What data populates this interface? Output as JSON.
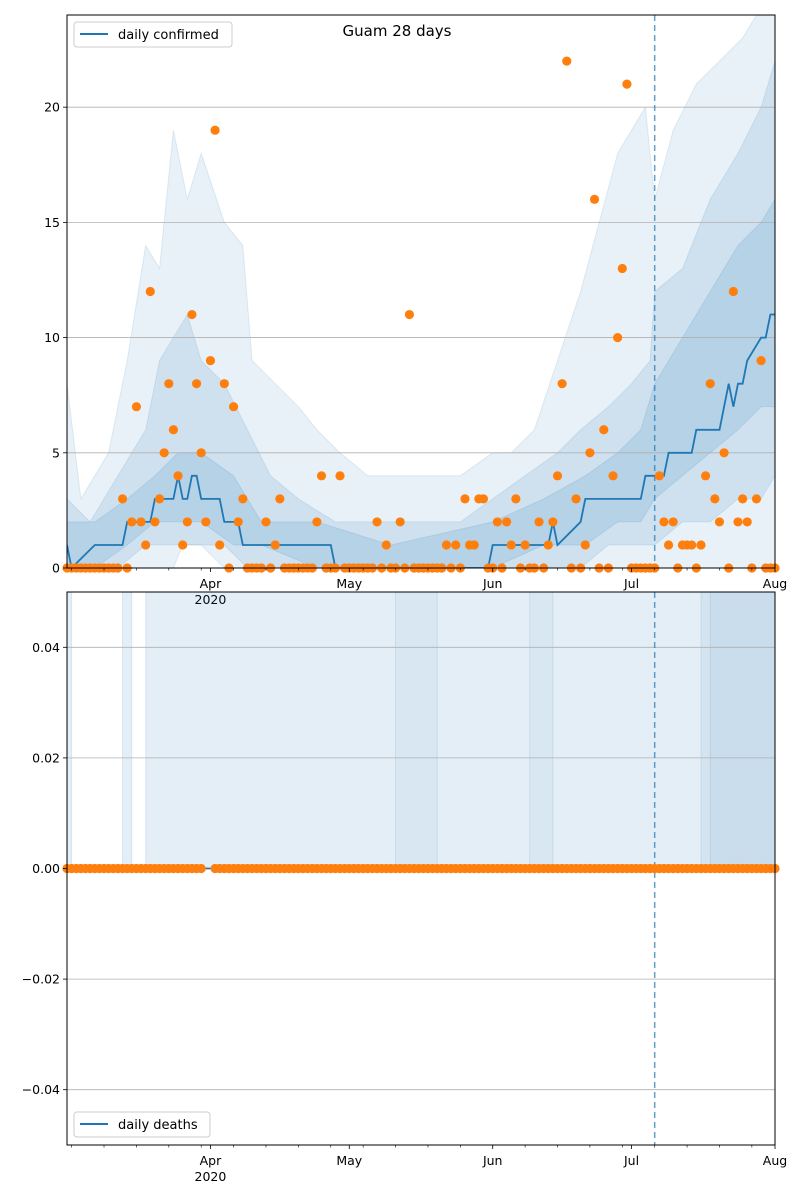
{
  "chart_data": [
    {
      "type": "line",
      "title": "Guam 28 days",
      "xlabel": "",
      "ylabel": "",
      "start_date": "2020-03-01",
      "xlim": [
        "2020-03-01",
        "2020-08-01"
      ],
      "ylim": [
        0,
        24
      ],
      "yticks": [
        0,
        5,
        10,
        15,
        20
      ],
      "xtick_labels": [
        {
          "date": "2020-04-01",
          "label": "Apr",
          "sublabel": "2020"
        },
        {
          "date": "2020-05-01",
          "label": "May",
          "sublabel": ""
        },
        {
          "date": "2020-06-01",
          "label": "Jun",
          "sublabel": ""
        },
        {
          "date": "2020-07-01",
          "label": "Jul",
          "sublabel": ""
        },
        {
          "date": "2020-08-01",
          "label": "Aug",
          "sublabel": ""
        }
      ],
      "grid": "y",
      "legend": {
        "position": "top-left",
        "entries": [
          "daily confirmed"
        ]
      },
      "forecast_date": "2020-07-06",
      "series": [
        {
          "name": "daily confirmed",
          "kind": "line",
          "color": "#1f77b4",
          "x": [
            "2020-03-01",
            "2020-03-02",
            "2020-03-07",
            "2020-03-13",
            "2020-03-14",
            "2020-03-19",
            "2020-03-20",
            "2020-03-24",
            "2020-03-25",
            "2020-03-26",
            "2020-03-27",
            "2020-03-28",
            "2020-03-29",
            "2020-03-30",
            "2020-04-03",
            "2020-04-04",
            "2020-04-07",
            "2020-04-08",
            "2020-04-09",
            "2020-04-10",
            "2020-04-11",
            "2020-04-12",
            "2020-04-13",
            "2020-04-27",
            "2020-04-28",
            "2020-05-31",
            "2020-06-01",
            "2020-06-13",
            "2020-06-14",
            "2020-06-15",
            "2020-06-20",
            "2020-06-21",
            "2020-07-03",
            "2020-07-04",
            "2020-07-08",
            "2020-07-09",
            "2020-07-14",
            "2020-07-15",
            "2020-07-20",
            "2020-07-21",
            "2020-07-22",
            "2020-07-23",
            "2020-07-24",
            "2020-07-25",
            "2020-07-26",
            "2020-07-29",
            "2020-07-30",
            "2020-07-31",
            "2020-08-01"
          ],
          "values": [
            1,
            0,
            1,
            1,
            2,
            2,
            3,
            3,
            4,
            3,
            3,
            4,
            4,
            3,
            3,
            2,
            2,
            1,
            1,
            1,
            1,
            1,
            1,
            1,
            0,
            0,
            1,
            1,
            2,
            1,
            2,
            3,
            3,
            4,
            4,
            5,
            5,
            6,
            6,
            7,
            8,
            7,
            8,
            8,
            9,
            10,
            10,
            11,
            11
          ]
        },
        {
          "name": "",
          "kind": "points",
          "color": "#ff7f0e",
          "x": [
            "2020-03-13",
            "2020-03-15",
            "2020-03-16",
            "2020-03-17",
            "2020-03-18",
            "2020-03-19",
            "2020-03-20",
            "2020-03-21",
            "2020-03-22",
            "2020-03-23",
            "2020-03-24",
            "2020-03-25",
            "2020-03-26",
            "2020-03-27",
            "2020-03-28",
            "2020-03-29",
            "2020-03-30",
            "2020-03-31",
            "2020-04-01",
            "2020-04-02",
            "2020-04-03",
            "2020-04-04",
            "2020-04-05",
            "2020-04-06",
            "2020-04-07",
            "2020-04-08",
            "2020-04-09",
            "2020-04-10",
            "2020-04-13",
            "2020-04-15",
            "2020-04-16",
            "2020-04-24",
            "2020-04-25",
            "2020-04-29",
            "2020-05-07",
            "2020-05-09",
            "2020-05-12",
            "2020-05-14",
            "2020-05-22",
            "2020-05-24",
            "2020-05-26",
            "2020-05-27",
            "2020-05-28",
            "2020-05-29",
            "2020-05-30",
            "2020-06-02",
            "2020-06-04",
            "2020-06-05",
            "2020-06-06",
            "2020-06-08",
            "2020-06-11",
            "2020-06-13",
            "2020-06-14",
            "2020-06-15",
            "2020-06-16",
            "2020-06-17",
            "2020-06-18",
            "2020-06-19",
            "2020-06-21",
            "2020-06-22",
            "2020-06-23",
            "2020-06-24",
            "2020-06-25",
            "2020-06-27",
            "2020-06-28",
            "2020-06-29",
            "2020-06-30",
            "2020-07-07",
            "2020-07-08",
            "2020-07-09",
            "2020-07-10",
            "2020-07-11",
            "2020-07-12",
            "2020-07-13",
            "2020-07-14",
            "2020-07-15",
            "2020-07-16",
            "2020-07-17",
            "2020-07-18",
            "2020-07-19",
            "2020-07-20",
            "2020-07-21",
            "2020-07-22",
            "2020-07-23",
            "2020-07-24",
            "2020-07-25",
            "2020-07-26",
            "2020-07-27",
            "2020-07-28",
            "2020-07-29",
            "2020-07-30",
            "2020-07-31",
            "2020-08-01"
          ],
          "values": [
            3,
            2,
            7,
            2,
            1,
            12,
            2,
            3,
            5,
            8,
            6,
            4,
            1,
            2,
            11,
            8,
            5,
            2,
            9,
            19,
            1,
            8,
            0,
            7,
            2,
            3,
            0,
            0,
            2,
            1,
            3,
            2,
            4,
            4,
            2,
            1,
            2,
            11,
            1,
            1,
            3,
            1,
            1,
            3,
            3,
            2,
            2,
            1,
            3,
            1,
            2,
            1,
            2,
            4,
            8,
            22,
            0,
            3,
            1,
            5,
            16,
            0,
            6,
            4,
            10,
            13,
            21,
            4,
            2,
            1,
            2,
            0,
            1,
            1,
            1,
            0,
            1,
            4,
            8,
            3,
            2,
            5,
            0,
            12,
            2,
            3,
            2,
            0,
            3,
            9,
            0,
            0,
            0
          ]
        }
      ],
      "bands": [
        {
          "name": "",
          "color": "#1f77b4",
          "opacity": 0.1,
          "x": [
            "2020-03-01",
            "2020-03-04",
            "2020-03-10",
            "2020-03-14",
            "2020-03-18",
            "2020-03-21",
            "2020-03-24",
            "2020-03-26",
            "2020-03-27",
            "2020-03-30",
            "2020-04-04",
            "2020-04-08",
            "2020-04-10",
            "2020-04-15",
            "2020-04-20",
            "2020-04-24",
            "2020-04-29",
            "2020-05-05",
            "2020-05-15",
            "2020-05-25",
            "2020-06-01",
            "2020-06-05",
            "2020-06-10",
            "2020-06-15",
            "2020-06-20",
            "2020-06-24",
            "2020-06-28",
            "2020-07-01",
            "2020-07-04",
            "2020-07-06",
            "2020-07-10",
            "2020-07-15",
            "2020-07-20",
            "2020-07-25",
            "2020-07-28",
            "2020-08-01"
          ],
          "lower": [
            0,
            0,
            0,
            0,
            0,
            0,
            0,
            1,
            1,
            1,
            0,
            0,
            0,
            0,
            0,
            0,
            0,
            0,
            0,
            0,
            0,
            0,
            0,
            0,
            0,
            0,
            0,
            0,
            0,
            0,
            0,
            0,
            0,
            0,
            0,
            0
          ],
          "upper": [
            8,
            3,
            5,
            9,
            14,
            13,
            19,
            17,
            16,
            18,
            15,
            14,
            9,
            8,
            7,
            6,
            5,
            4,
            4,
            4,
            5,
            5,
            6,
            9,
            12,
            15,
            18,
            19,
            20,
            16,
            19,
            21,
            22,
            23,
            24,
            24
          ]
        },
        {
          "name": "",
          "color": "#1f77b4",
          "opacity": 0.12,
          "x": [
            "2020-03-01",
            "2020-03-06",
            "2020-03-12",
            "2020-03-18",
            "2020-03-21",
            "2020-03-24",
            "2020-03-27",
            "2020-03-30",
            "2020-04-04",
            "2020-04-09",
            "2020-04-14",
            "2020-04-20",
            "2020-04-28",
            "2020-05-10",
            "2020-05-25",
            "2020-06-01",
            "2020-06-08",
            "2020-06-15",
            "2020-06-20",
            "2020-06-26",
            "2020-07-01",
            "2020-07-05",
            "2020-07-06",
            "2020-07-12",
            "2020-07-18",
            "2020-07-24",
            "2020-07-29",
            "2020-08-01"
          ],
          "lower": [
            0,
            0,
            0,
            1,
            1,
            1,
            1,
            1,
            1,
            0,
            0,
            0,
            0,
            0,
            0,
            0,
            0,
            0,
            0,
            1,
            1,
            1,
            1,
            2,
            2,
            3,
            3,
            4
          ],
          "upper": [
            3,
            2,
            4,
            6,
            9,
            10,
            11,
            9,
            8,
            6,
            4,
            3,
            2,
            2,
            2,
            3,
            4,
            5,
            6,
            7,
            8,
            9,
            12,
            13,
            16,
            18,
            20,
            22
          ]
        },
        {
          "name": "",
          "color": "#1f77b4",
          "opacity": 0.14,
          "x": [
            "2020-03-01",
            "2020-03-07",
            "2020-03-14",
            "2020-03-20",
            "2020-03-25",
            "2020-03-30",
            "2020-04-06",
            "2020-04-12",
            "2020-04-24",
            "2020-05-10",
            "2020-06-01",
            "2020-06-12",
            "2020-06-21",
            "2020-06-28",
            "2020-07-03",
            "2020-07-06",
            "2020-07-12",
            "2020-07-18",
            "2020-07-24",
            "2020-07-29",
            "2020-08-01"
          ],
          "lower": [
            0,
            0,
            1,
            2,
            2,
            2,
            1,
            1,
            0,
            0,
            0,
            1,
            1,
            2,
            2,
            3,
            4,
            5,
            6,
            7,
            7
          ],
          "upper": [
            2,
            2,
            3,
            4,
            5,
            5,
            4,
            2,
            2,
            1,
            2,
            3,
            4,
            5,
            6,
            8,
            10,
            12,
            14,
            15,
            16
          ]
        }
      ]
    },
    {
      "type": "line",
      "title": "",
      "xlabel": "",
      "ylabel": "",
      "xlim": [
        "2020-03-01",
        "2020-08-01"
      ],
      "ylim": [
        -0.05,
        0.05
      ],
      "yticks": [
        -0.04,
        -0.02,
        0.0,
        0.02,
        0.04
      ],
      "ytick_labels": [
        "−0.04",
        "−0.02",
        "0.00",
        "0.02",
        "0.04"
      ],
      "xtick_labels": [
        {
          "date": "2020-04-01",
          "label": "Apr",
          "sublabel": "2020"
        },
        {
          "date": "2020-05-01",
          "label": "May",
          "sublabel": ""
        },
        {
          "date": "2020-06-01",
          "label": "Jun",
          "sublabel": ""
        },
        {
          "date": "2020-07-01",
          "label": "Jul",
          "sublabel": ""
        },
        {
          "date": "2020-08-01",
          "label": "Aug",
          "sublabel": ""
        }
      ],
      "grid": "y",
      "legend": {
        "position": "bottom-left",
        "entries": [
          "daily deaths"
        ]
      },
      "forecast_date": "2020-07-06",
      "series": [
        {
          "name": "daily deaths",
          "kind": "line",
          "color": "#1f77b4",
          "x": [
            "2020-03-01",
            "2020-08-01"
          ],
          "values": [
            0,
            0
          ]
        },
        {
          "name": "",
          "kind": "points",
          "color": "#ff7f0e",
          "x_range": [
            "2020-03-01",
            "2020-08-01"
          ],
          "skip": [
            "2020-03-30",
            "2020-04-02"
          ],
          "value": 0
        }
      ],
      "bands": [
        {
          "name": "",
          "color": "#1f77b4",
          "opacity": 0.12,
          "x": [
            "2020-03-01",
            "2020-03-02"
          ],
          "lower": [
            0,
            0
          ],
          "upper": [
            0.06,
            0.06
          ]
        },
        {
          "name": "",
          "color": "#1f77b4",
          "opacity": 0.12,
          "x": [
            "2020-03-13",
            "2020-03-15"
          ],
          "lower": [
            0,
            0
          ],
          "upper": [
            0.06,
            0.06
          ]
        },
        {
          "name": "",
          "color": "#1f77b4",
          "opacity": 0.12,
          "x": [
            "2020-03-18",
            "2020-08-01"
          ],
          "lower": [
            0,
            0
          ],
          "upper": [
            0.06,
            0.06
          ]
        },
        {
          "name": "",
          "color": "#1f77b4",
          "opacity": 0.06,
          "x": [
            "2020-05-11",
            "2020-05-20"
          ],
          "lower": [
            0,
            0
          ],
          "upper": [
            0.06,
            0.06
          ]
        },
        {
          "name": "",
          "color": "#1f77b4",
          "opacity": 0.06,
          "x": [
            "2020-06-09",
            "2020-06-14"
          ],
          "lower": [
            0,
            0
          ],
          "upper": [
            0.06,
            0.06
          ]
        },
        {
          "name": "",
          "color": "#1f77b4",
          "opacity": 0.08,
          "x": [
            "2020-07-16",
            "2020-08-01"
          ],
          "lower": [
            0,
            0
          ],
          "upper": [
            0.06,
            0.06
          ]
        },
        {
          "name": "",
          "color": "#1f77b4",
          "opacity": 0.06,
          "x": [
            "2020-07-18",
            "2020-08-01"
          ],
          "lower": [
            0,
            0
          ],
          "upper": [
            0.06,
            0.06
          ]
        }
      ]
    }
  ]
}
